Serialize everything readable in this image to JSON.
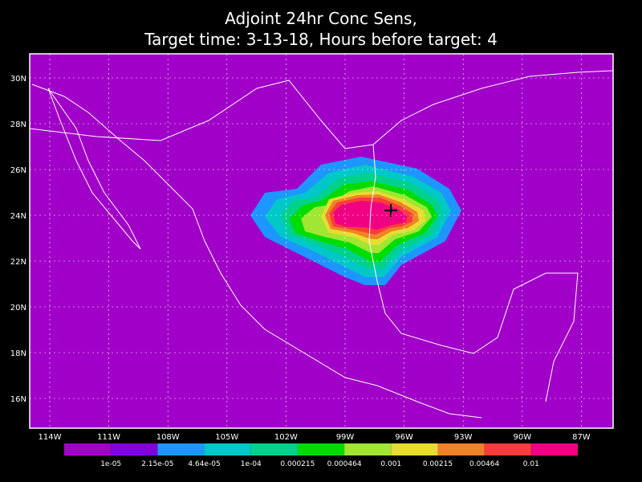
{
  "title": [
    "Adjoint 24hr Conc Sens,",
    "Target time: 3-13-18, Hours before target: 4"
  ],
  "lat_labels": [
    "30N",
    "28N",
    "26N",
    "24N",
    "22N",
    "20N",
    "18N",
    "16N"
  ],
  "lon_labels": [
    "114W",
    "111W",
    "108W",
    "105W",
    "102W",
    "99W",
    "96W",
    "93W",
    "90W",
    "87W"
  ],
  "colorbar": {
    "colors": [
      "#a000c8",
      "#8200dc",
      "#1e96ff",
      "#00c8c8",
      "#00d28c",
      "#00dc00",
      "#a0e632",
      "#e6dc32",
      "#f08228",
      "#fa3c3c",
      "#f00082"
    ],
    "labels": [
      "1e-05",
      "2.15e-05",
      "4.64e-05",
      "1e-04",
      "0.000215",
      "0.000464",
      "0.001",
      "0.00215",
      "0.00464",
      "0.01"
    ]
  }
}
